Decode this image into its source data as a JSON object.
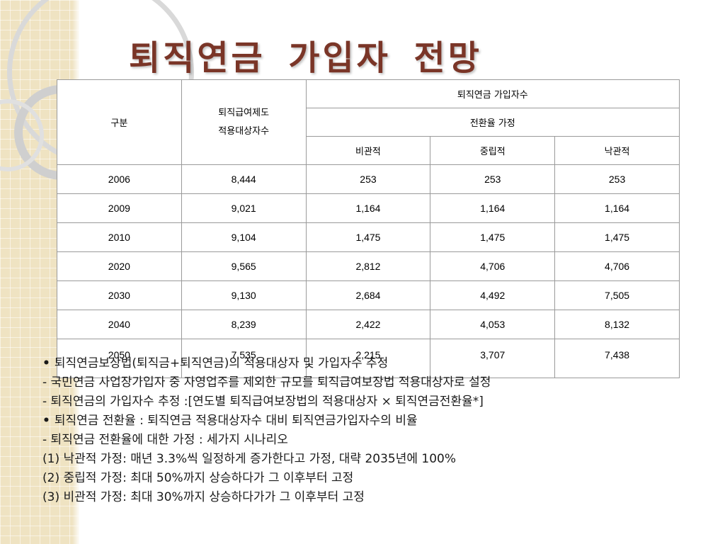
{
  "title": "퇴직연금 가입자 전망",
  "table": {
    "header": {
      "category": "구분",
      "eligible_line1": "퇴직급여제도",
      "eligible_line2": "적용대상자수",
      "subscribers": "퇴직연금 가입자수",
      "assumption": "전환율 가정",
      "pessimistic": "비관적",
      "neutral": "중립적",
      "optimistic": "낙관적"
    },
    "rows": [
      {
        "year": "2006",
        "eligible": "8,444",
        "pessimistic": "253",
        "neutral": "253",
        "optimistic": "253"
      },
      {
        "year": "2009",
        "eligible": "9,021",
        "pessimistic": "1,164",
        "neutral": "1,164",
        "optimistic": "1,164"
      },
      {
        "year": "2010",
        "eligible": "9,104",
        "pessimistic": "1,475",
        "neutral": "1,475",
        "optimistic": "1,475"
      },
      {
        "year": "2020",
        "eligible": "9,565",
        "pessimistic": "2,812",
        "neutral": "4,706",
        "optimistic": "4,706"
      },
      {
        "year": "2030",
        "eligible": "9,130",
        "pessimistic": "2,684",
        "neutral": "4,492",
        "optimistic": "7,505"
      },
      {
        "year": "2040",
        "eligible": "8,239",
        "pessimistic": "2,422",
        "neutral": "4,053",
        "optimistic": "8,132"
      },
      {
        "year": "2050",
        "eligible": "7,535",
        "pessimistic": "2,215",
        "neutral": "3,707",
        "optimistic": "7,438"
      }
    ]
  },
  "notes": {
    "line1": "퇴직연금보상법(퇴직금+퇴직연금)의 적용대상자 및 가입자수 추정",
    "line2": "- 국민연금 사업장가입자 중 자영업주를 제외한 규모를 퇴직급여보장법 적용대상자로 설정",
    "line3": "- 퇴직연금의 가입자수 추정 :[연도별 퇴직급여보장법의 적용대상자 × 퇴직연금전환율*]",
    "line4": "퇴직연금 전환율 : 퇴직연금 적용대상자수 대비 퇴직연금가입자수의 비율",
    "line5": "- 퇴직연금 전환율에 대한 가정 : 세가지 시나리오",
    "line6": "(1) 낙관적 가정: 매년 3.3%씩 일정하게 증가한다고 가정, 대략 2035년에 100%",
    "line7": "(2) 중립적 가정: 최대 50%까지 상승하다가 그 이후부터 고정",
    "line8": "(3) 비관적 가정: 최대 30%까지 상승하다가가 그 이후부터 고정",
    "bullet": "•"
  },
  "colors": {
    "title": "#7a3527",
    "side_panel": "#efe3c2"
  }
}
